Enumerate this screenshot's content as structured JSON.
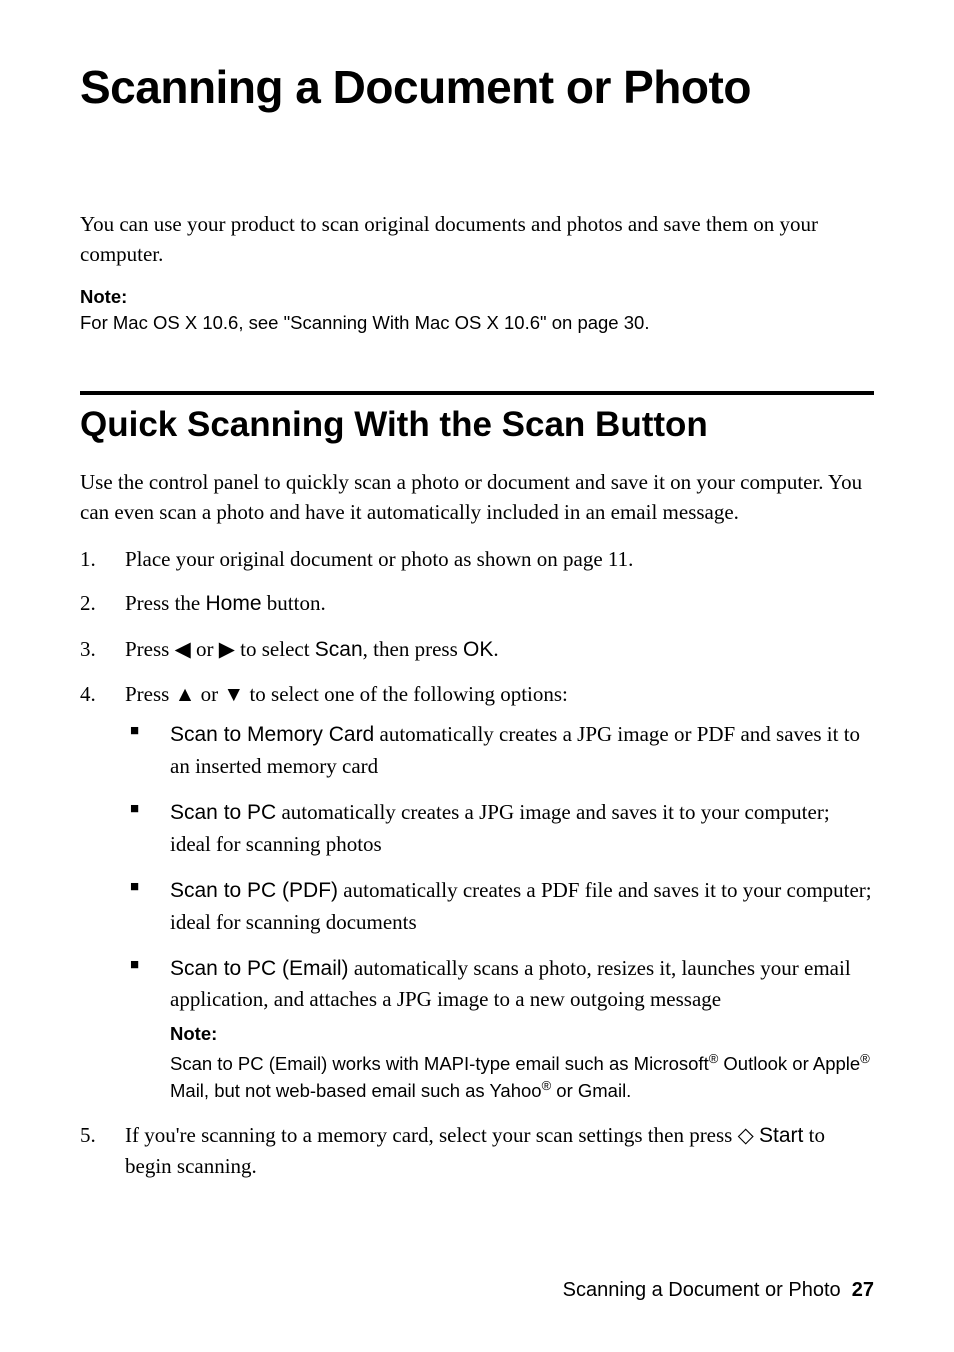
{
  "heading": "Scanning a Document or Photo",
  "intro": "You can use your product to scan original documents and photos and save them on your computer.",
  "note1": {
    "label": "Note:",
    "text": "For Mac OS X 10.6, see \"Scanning With Mac OS X 10.6\" on page 30."
  },
  "section_title": "Quick Scanning With the Scan Button",
  "section_intro": "Use the control panel to quickly scan a photo or document and save it on your computer. You can even scan a photo and have it automatically included in an email message.",
  "steps": {
    "s1": "Place your original document or photo as shown on page 11.",
    "s2_a": "Press the ",
    "s2_b": "Home",
    "s2_c": " button.",
    "s3_a": "Press ",
    "s3_b": " or ",
    "s3_c": " to select ",
    "s3_scan": "Scan",
    "s3_d": ", then press ",
    "s3_ok": "OK",
    "s3_e": ".",
    "s4_a": "Press ",
    "s4_b": " or ",
    "s4_c": " to select one of the following options:",
    "s5_a": "If you're scanning to a memory card, select your scan settings then press ",
    "s5_start": "Start",
    "s5_b": " to begin scanning."
  },
  "bullets": {
    "b1_name": "Scan to Memory Card",
    "b1_rest": " automatically creates a JPG image or PDF and saves it to an inserted memory card",
    "b2_name": "Scan to PC",
    "b2_rest": " automatically creates a JPG image and saves it to your computer; ideal for scanning photos",
    "b3_name": "Scan to PC (PDF)",
    "b3_rest": " automatically creates a PDF file and saves it to your computer; ideal for scanning documents",
    "b4_name": "Scan to PC (Email)",
    "b4_rest": " automatically scans a photo, resizes it, launches your email application, and attaches a JPG image to a new outgoing message"
  },
  "note2": {
    "label": "Note:",
    "t1": "Scan to PC (Email) works with MAPI-type email such as Microsoft",
    "t2": " Outlook or Apple",
    "t3": " Mail, but not web-based email such as Yahoo",
    "t4": " or Gmail."
  },
  "footer": {
    "title": "Scanning a Document or Photo",
    "page": "27"
  },
  "arrows": {
    "left": "◀",
    "right": "▶",
    "up": "▲",
    "down": "▼",
    "diamond": "◇"
  },
  "reg": "®"
}
